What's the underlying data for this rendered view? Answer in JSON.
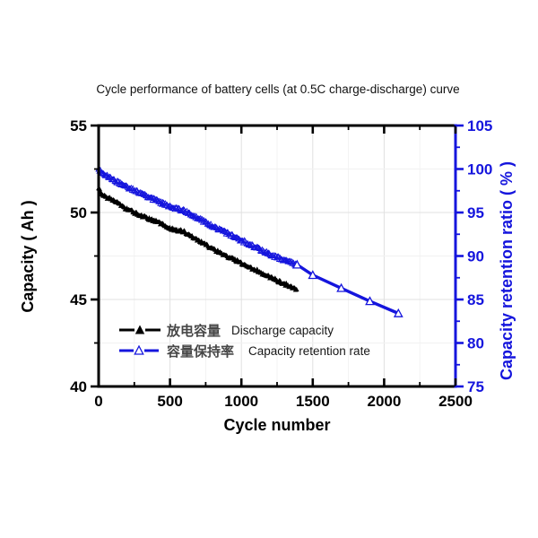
{
  "page": {
    "background": "#ffffff"
  },
  "chart_data": {
    "type": "line",
    "title": "Cycle performance of battery cells (at 0.5C charge-discharge) curve",
    "xlabel": "Cycle number",
    "ylabel_left": "Capacity ( Ah )",
    "ylabel_right": "Capacity retention ratio ( % )",
    "grid": true,
    "legend_position": "lower-left-inside",
    "x_axis": {
      "min": 0,
      "max": 2500,
      "major_ticks": [
        0,
        500,
        1000,
        1500,
        2000,
        2500
      ],
      "minor_step": 250
    },
    "y_left": {
      "min": 40,
      "max": 55,
      "major_ticks": [
        40,
        45,
        50,
        55
      ],
      "minor_step": 2.5,
      "color": "#000000"
    },
    "y_right": {
      "min": 75,
      "max": 105,
      "major_ticks": [
        75,
        80,
        85,
        90,
        95,
        100,
        105
      ],
      "minor_step": 2.5,
      "color": "#1515dd"
    },
    "legend": {
      "entries": [
        {
          "zh": "放电容量",
          "en": "Discharge capacity",
          "color": "#000000",
          "marker": "triangle-filled"
        },
        {
          "zh": "容量保持率",
          "en": "Capacity retention rate",
          "color": "#1515dd",
          "marker": "triangle-open"
        }
      ]
    },
    "series": [
      {
        "id": "discharge-capacity",
        "axis": "left",
        "color": "#000000",
        "marker": "triangle-filled",
        "style": "dense-noisy",
        "breakpoints": [
          [
            0,
            51.4
          ],
          [
            30,
            51.0
          ],
          [
            100,
            50.7
          ],
          [
            200,
            50.2
          ],
          [
            300,
            49.8
          ],
          [
            400,
            49.5
          ],
          [
            500,
            49.1
          ],
          [
            600,
            48.9
          ],
          [
            700,
            48.4
          ],
          [
            800,
            47.9
          ],
          [
            900,
            47.5
          ],
          [
            1000,
            47.1
          ],
          [
            1100,
            46.7
          ],
          [
            1200,
            46.3
          ],
          [
            1300,
            45.9
          ],
          [
            1390,
            45.6
          ]
        ]
      },
      {
        "id": "capacity-retention",
        "axis": "right",
        "color": "#1515dd",
        "marker": "triangle-open",
        "style": "dense-noisy",
        "breakpoints": [
          [
            0,
            100.0
          ],
          [
            30,
            99.4
          ],
          [
            100,
            98.8
          ],
          [
            200,
            97.9
          ],
          [
            300,
            97.2
          ],
          [
            400,
            96.4
          ],
          [
            500,
            95.7
          ],
          [
            600,
            95.2
          ],
          [
            700,
            94.3
          ],
          [
            800,
            93.4
          ],
          [
            900,
            92.6
          ],
          [
            1000,
            91.8
          ],
          [
            1100,
            91.0
          ],
          [
            1200,
            90.2
          ],
          [
            1300,
            89.5
          ],
          [
            1390,
            89.0
          ]
        ],
        "extrapolated_points": [
          [
            1390,
            89.0
          ],
          [
            1500,
            87.8
          ],
          [
            1700,
            86.3
          ],
          [
            1900,
            84.8
          ],
          [
            2100,
            83.4
          ]
        ]
      }
    ]
  }
}
